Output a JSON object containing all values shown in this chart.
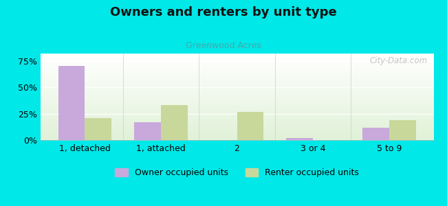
{
  "title": "Owners and renters by unit type",
  "subtitle": "Greenwood Acres",
  "categories": [
    "1, detached",
    "1, attached",
    "2",
    "3 or 4",
    "5 to 9"
  ],
  "owner_values": [
    70,
    17,
    0,
    2,
    12
  ],
  "renter_values": [
    21,
    33,
    27,
    0,
    19
  ],
  "owner_color": "#c9a8dc",
  "renter_color": "#c8d89a",
  "background_color": "#00e8e8",
  "yticks": [
    0,
    25,
    50,
    75
  ],
  "ylim": [
    0,
    82
  ],
  "bar_width": 0.35,
  "watermark": "City-Data.com",
  "legend_owner": "Owner occupied units",
  "legend_renter": "Renter occupied units",
  "title_fontsize": 13,
  "subtitle_fontsize": 9,
  "tick_fontsize": 9
}
